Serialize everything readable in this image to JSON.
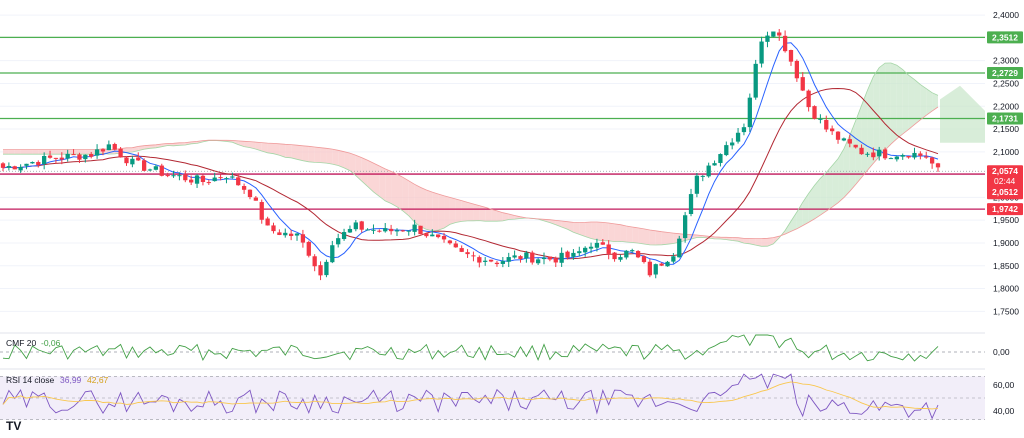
{
  "colors": {
    "up": "#089981",
    "down": "#f23645",
    "tenkan": "#2962ff",
    "kijun": "#b22833",
    "cloud_bull": "#c8e6c9",
    "cloud_bear": "#f8c5c5",
    "span_a": "#a5d6a7",
    "span_b": "#ef9a9a",
    "support_green": "#4caf50",
    "support_red": "#c2185b",
    "label_red": "#f23645",
    "label_green": "#4caf50",
    "cmf_line": "#43a047",
    "rsi_line": "#7e57c2",
    "rsi_ma": "#f9c74f",
    "rsi_band": "#ede7f6",
    "axis_text": "#131722",
    "grid": "#f0f3fa"
  },
  "price_axis": {
    "min": 1.72,
    "max": 2.42,
    "ticks": [
      "2,4000",
      "2,3500",
      "2,3000",
      "2,2500",
      "2,2000",
      "2,1500",
      "2,1000",
      "2,0500",
      "2,0000",
      "1,9500",
      "1,9000",
      "1,8500",
      "1,8000",
      "1,7500"
    ],
    "tick_values": [
      2.4,
      2.35,
      2.3,
      2.25,
      2.2,
      2.15,
      2.1,
      2.05,
      2.0,
      1.95,
      1.9,
      1.85,
      1.8,
      1.75
    ]
  },
  "levels": [
    {
      "value": 2.3512,
      "label": "2,3512",
      "kind": "green"
    },
    {
      "value": 2.2729,
      "label": "2,2729",
      "kind": "green"
    },
    {
      "value": 2.1731,
      "label": "2,1731",
      "kind": "green"
    },
    {
      "value": 2.0512,
      "label": "2,0512",
      "kind": "red"
    },
    {
      "value": 1.9742,
      "label": "1,9742",
      "kind": "red"
    }
  ],
  "current_price": {
    "value": 2.0574,
    "label": "2,0574",
    "countdown": "02:44"
  },
  "cmf": {
    "label": "CMF 20",
    "value_label": "-0,06",
    "zero_label": "0,00",
    "range": [
      -0.15,
      0.15
    ]
  },
  "rsi": {
    "label": "RSI 14 close",
    "value_label": "36,99",
    "ma_label": "42,67",
    "tick_labels": [
      "60,00",
      "40,00"
    ],
    "ticks": [
      60,
      40
    ],
    "range": [
      25,
      75
    ],
    "band": [
      30,
      70
    ]
  },
  "logo": "TV",
  "chart_data": {
    "type": "candlestick",
    "title": "",
    "y_range": [
      1.72,
      2.42
    ],
    "candles": [],
    "overlays": [
      "ichimoku",
      "support_resistance"
    ],
    "indicators": [
      "CMF 20",
      "RSI 14"
    ]
  }
}
